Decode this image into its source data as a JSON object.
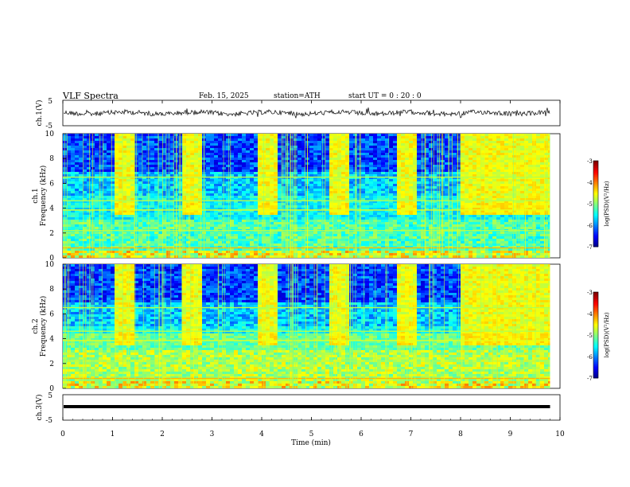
{
  "header": {
    "title": "VLF  Spectra",
    "date": "Feb. 15, 2025",
    "station": "station=ATH",
    "start": "start  UT  =    0  : 20 : 0"
  },
  "chart_data": {
    "type": "heatmap",
    "xlabel": "Time  (min)",
    "xlim": [
      0,
      10
    ],
    "xticks": [
      "0",
      "1",
      "2",
      "3",
      "4",
      "5",
      "6",
      "7",
      "8",
      "9",
      "10"
    ],
    "panels": [
      {
        "id": "ch1-waveform",
        "type": "line",
        "ylabel": "ch.1(V)",
        "ylim": [
          -5,
          5
        ],
        "yticks": [
          "5",
          "-5"
        ]
      },
      {
        "id": "ch1-spectrogram",
        "type": "heatmap",
        "ylabel_line1": "ch.1",
        "ylabel_line2": "Frequency  (kHz)",
        "ylim": [
          0,
          10
        ],
        "yticks": [
          "0",
          "2",
          "4",
          "6",
          "8",
          "10"
        ],
        "colorbar": {
          "label": "log(PSD)(V²/Hz)",
          "range": [
            -7,
            -3
          ],
          "ticks": [
            "-3",
            "-4",
            "-5",
            "-6",
            "-7"
          ]
        }
      },
      {
        "id": "ch2-spectrogram",
        "type": "heatmap",
        "ylabel_line1": "ch.2",
        "ylabel_line2": "Frequency  (kHz)",
        "ylim": [
          0,
          10
        ],
        "yticks": [
          "0",
          "2",
          "4",
          "6",
          "8",
          "10"
        ],
        "colorbar": {
          "label": "log(PSD)(V²/Hz)",
          "range": [
            -7,
            -3
          ],
          "ticks": [
            "-3",
            "-4",
            "-5",
            "-6",
            "-7"
          ]
        }
      },
      {
        "id": "ch3-waveform",
        "type": "line",
        "ylabel": "ch.3(V)",
        "ylim": [
          -5,
          5
        ],
        "yticks": [
          "5",
          "-5"
        ]
      }
    ],
    "transmitter_bursts_min": [
      [
        1.0,
        1.4
      ],
      [
        2.4,
        2.8
      ],
      [
        3.9,
        4.3
      ],
      [
        5.3,
        5.7
      ],
      [
        6.7,
        7.1
      ],
      [
        8.0,
        9.8
      ]
    ],
    "data_end_min": 9.8
  }
}
